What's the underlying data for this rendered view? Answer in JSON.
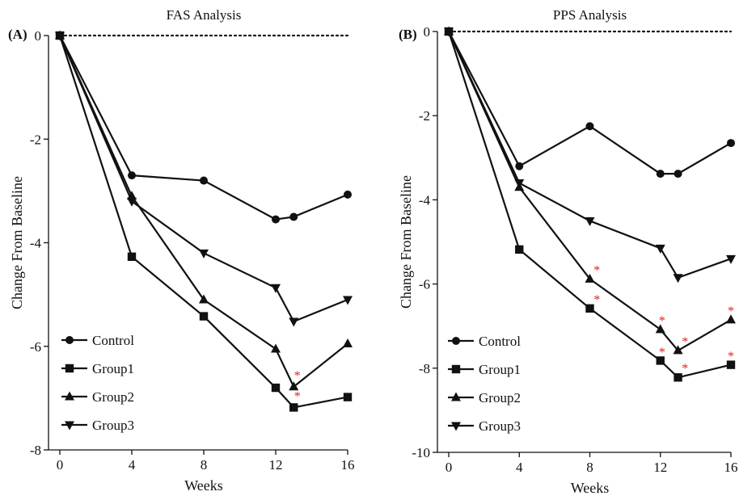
{
  "chart_data": [
    {
      "type": "line",
      "panel_label": "(A)",
      "title": "FAS Analysis",
      "xlabel": "Weeks",
      "ylabel": "Change From Baseline",
      "xlim": [
        0,
        16
      ],
      "ylim": [
        -8,
        0
      ],
      "xticks": [
        0,
        4,
        8,
        12,
        16
      ],
      "yticks": [
        0,
        -2,
        -4,
        -6,
        -8
      ],
      "baseline_y": 0,
      "grid": false,
      "legend_position": "bottom-left",
      "colors": {
        "line": "#111111",
        "significance": "#e02020"
      },
      "x": [
        0,
        4,
        8,
        12,
        13,
        16
      ],
      "series": [
        {
          "name": "Control",
          "marker": "circle",
          "values": [
            0,
            -2.7,
            -2.8,
            -3.55,
            -3.5,
            -3.07
          ]
        },
        {
          "name": "Group1",
          "marker": "square",
          "values": [
            0,
            -4.27,
            -5.42,
            -6.8,
            -7.18,
            -6.98
          ]
        },
        {
          "name": "Group2",
          "marker": "triangle-up",
          "values": [
            0,
            -3.1,
            -5.1,
            -6.05,
            -6.78,
            -5.95
          ]
        },
        {
          "name": "Group3",
          "marker": "triangle-down",
          "values": [
            0,
            -3.2,
            -4.2,
            -4.87,
            -5.52,
            -5.1
          ]
        }
      ],
      "significance_marks": [
        {
          "text": "*",
          "x": 13.2,
          "y": -6.55
        },
        {
          "text": "*",
          "x": 13.2,
          "y": -6.95
        }
      ]
    },
    {
      "type": "line",
      "panel_label": "(B)",
      "title": "PPS Analysis",
      "xlabel": "Weeks",
      "ylabel": "Change From Baseline",
      "xlim": [
        0,
        16
      ],
      "ylim": [
        -10,
        0
      ],
      "xticks": [
        0,
        4,
        8,
        12,
        16
      ],
      "yticks": [
        0,
        -2,
        -4,
        -6,
        -8,
        -10
      ],
      "baseline_y": 0,
      "grid": false,
      "legend_position": "bottom-left",
      "colors": {
        "line": "#111111",
        "significance": "#e02020"
      },
      "x": [
        0,
        4,
        8,
        12,
        13,
        16
      ],
      "series": [
        {
          "name": "Control",
          "marker": "circle",
          "values": [
            0,
            -3.2,
            -2.25,
            -3.38,
            -3.38,
            -2.65
          ]
        },
        {
          "name": "Group1",
          "marker": "square",
          "values": [
            0,
            -5.18,
            -6.58,
            -7.82,
            -8.22,
            -7.92
          ]
        },
        {
          "name": "Group2",
          "marker": "triangle-up",
          "values": [
            0,
            -3.7,
            -5.88,
            -7.08,
            -7.58,
            -6.85
          ]
        },
        {
          "name": "Group3",
          "marker": "triangle-down",
          "values": [
            0,
            -3.6,
            -4.5,
            -5.15,
            -5.85,
            -5.4
          ]
        }
      ],
      "significance_marks": [
        {
          "text": "*",
          "x": 8.4,
          "y": -5.65
        },
        {
          "text": "*",
          "x": 8.4,
          "y": -6.35
        },
        {
          "text": "*",
          "x": 12.1,
          "y": -6.85
        },
        {
          "text": "*",
          "x": 12.1,
          "y": -7.6
        },
        {
          "text": "*",
          "x": 13.4,
          "y": -7.35
        },
        {
          "text": "*",
          "x": 13.4,
          "y": -7.98
        },
        {
          "text": "*",
          "x": 16.0,
          "y": -6.62
        },
        {
          "text": "*",
          "x": 16.0,
          "y": -7.7
        }
      ]
    }
  ]
}
